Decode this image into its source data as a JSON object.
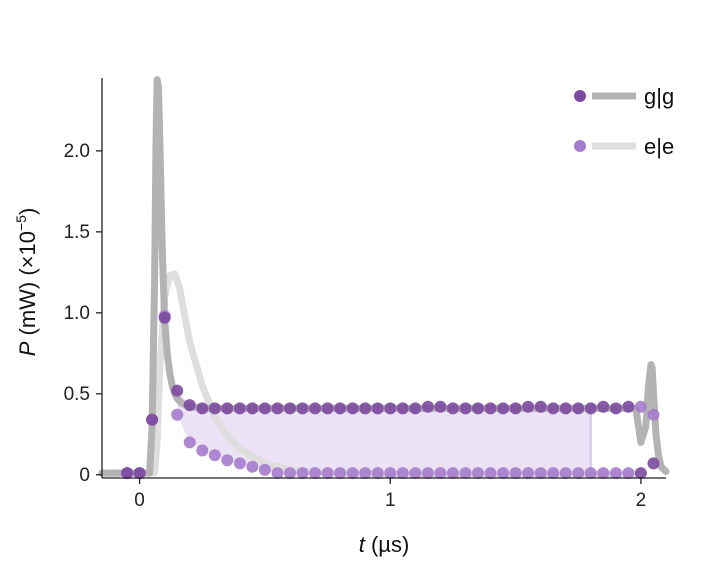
{
  "chart_data": {
    "type": "line",
    "xlabel": {
      "var": "t",
      "unit": " (µs)"
    },
    "ylabel": {
      "var": "P",
      "unit": " (mW) (×10",
      "exp": "−5",
      "close": ")"
    },
    "xlim": [
      -0.15,
      2.1
    ],
    "ylim": [
      -0.02,
      2.45
    ],
    "x_ticks": [
      0,
      1,
      2
    ],
    "x_tick_labels": [
      "0",
      "1",
      "2"
    ],
    "y_ticks": [
      0,
      0.5,
      1.0,
      1.5,
      2.0
    ],
    "y_tick_labels": [
      "0",
      "0.5",
      "1.0",
      "1.5",
      "2.0"
    ],
    "grid": false,
    "legend_position": "top-right",
    "colors": {
      "gg_line": "#b3b3b3",
      "ee_line": "#dedede",
      "gg_marker": "#7b4a9e",
      "ee_marker": "#a57ccd",
      "fill": "#e8ddf3"
    },
    "series": [
      {
        "name": "g|g",
        "kind": "theory-line",
        "x": [
          -0.15,
          0.04,
          0.05,
          0.06,
          0.065,
          0.07,
          0.075,
          0.08,
          0.09,
          0.1,
          0.11,
          0.12,
          0.13,
          0.14,
          0.15,
          0.17,
          0.2,
          0.25,
          0.3,
          0.4,
          1.0,
          1.9,
          1.98,
          2.0,
          2.02,
          2.03,
          2.04,
          2.045,
          2.05,
          2.06,
          2.07,
          2.08,
          2.1
        ],
        "y": [
          0.01,
          0.01,
          0.3,
          1.2,
          2.0,
          2.44,
          2.4,
          2.1,
          1.4,
          0.95,
          0.75,
          0.63,
          0.55,
          0.5,
          0.47,
          0.44,
          0.42,
          0.41,
          0.41,
          0.41,
          0.41,
          0.41,
          0.41,
          0.2,
          0.3,
          0.55,
          0.68,
          0.66,
          0.5,
          0.25,
          0.12,
          0.05,
          0.02
        ]
      },
      {
        "name": "e|e",
        "kind": "theory-line",
        "x": [
          -0.15,
          0.06,
          0.07,
          0.08,
          0.1,
          0.12,
          0.14,
          0.16,
          0.18,
          0.2,
          0.25,
          0.3,
          0.35,
          0.4,
          0.5,
          0.6,
          0.7,
          1.0,
          1.9,
          1.98
        ],
        "y": [
          0.01,
          0.01,
          0.2,
          0.65,
          1.1,
          1.23,
          1.24,
          1.15,
          0.98,
          0.82,
          0.55,
          0.36,
          0.24,
          0.16,
          0.07,
          0.03,
          0.015,
          0.005,
          0.005,
          0.005
        ]
      },
      {
        "name": "g|g",
        "kind": "data-markers",
        "x": [
          -0.05,
          0.0,
          0.05,
          0.1,
          0.15,
          0.2,
          0.25,
          0.3,
          0.35,
          0.4,
          0.45,
          0.5,
          0.55,
          0.6,
          0.65,
          0.7,
          0.75,
          0.8,
          0.85,
          0.9,
          0.95,
          1.0,
          1.05,
          1.1,
          1.15,
          1.2,
          1.25,
          1.3,
          1.35,
          1.4,
          1.45,
          1.5,
          1.55,
          1.6,
          1.65,
          1.7,
          1.75,
          1.8,
          1.85,
          1.9,
          1.95,
          2.0,
          2.05
        ],
        "y": [
          0.01,
          0.01,
          0.34,
          0.97,
          0.52,
          0.43,
          0.41,
          0.41,
          0.41,
          0.41,
          0.41,
          0.41,
          0.41,
          0.41,
          0.41,
          0.41,
          0.41,
          0.41,
          0.41,
          0.41,
          0.41,
          0.41,
          0.41,
          0.41,
          0.42,
          0.42,
          0.41,
          0.41,
          0.41,
          0.41,
          0.41,
          0.41,
          0.42,
          0.42,
          0.41,
          0.41,
          0.41,
          0.41,
          0.42,
          0.41,
          0.42,
          0.01,
          0.07
        ]
      },
      {
        "name": "e|e",
        "kind": "data-markers",
        "x": [
          -0.05,
          0.0,
          0.05,
          0.1,
          0.15,
          0.2,
          0.25,
          0.3,
          0.35,
          0.4,
          0.45,
          0.5,
          0.55,
          0.6,
          0.65,
          0.7,
          0.75,
          0.8,
          0.85,
          0.9,
          0.95,
          1.0,
          1.05,
          1.1,
          1.15,
          1.2,
          1.25,
          1.3,
          1.35,
          1.4,
          1.45,
          1.5,
          1.55,
          1.6,
          1.65,
          1.7,
          1.75,
          1.8,
          1.85,
          1.9,
          1.95,
          2.0,
          2.05
        ],
        "y": [
          0.01,
          0.01,
          0.34,
          0.98,
          0.37,
          0.2,
          0.15,
          0.12,
          0.09,
          0.07,
          0.05,
          0.03,
          0.01,
          0.01,
          0.01,
          0.01,
          0.01,
          0.01,
          0.01,
          0.01,
          0.01,
          0.01,
          0.01,
          0.01,
          0.01,
          0.01,
          0.01,
          0.01,
          0.01,
          0.01,
          0.01,
          0.01,
          0.01,
          0.01,
          0.01,
          0.01,
          0.01,
          0.01,
          0.01,
          0.01,
          0.01,
          0.42,
          0.37
        ]
      }
    ],
    "shaded_region": {
      "x": [
        0.15,
        1.8
      ]
    },
    "legend": [
      {
        "label": "g|g",
        "marker_color": "#7b4a9e",
        "line_color": "#b3b3b3"
      },
      {
        "label": "e|e",
        "marker_color": "#a57ccd",
        "line_color": "#dedede"
      }
    ]
  }
}
